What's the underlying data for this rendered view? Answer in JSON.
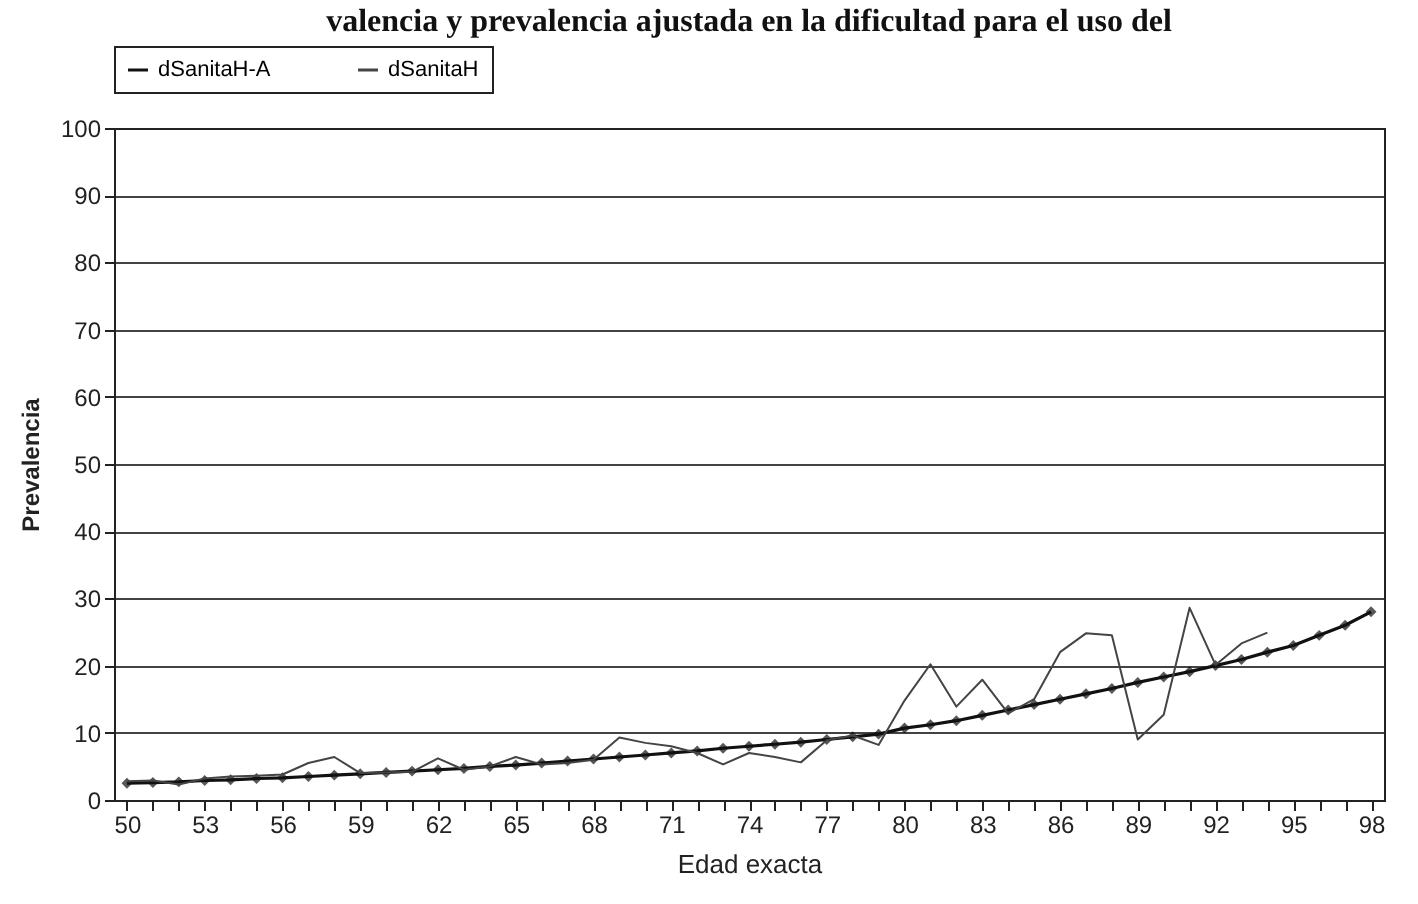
{
  "chart_data": {
    "type": "line",
    "title": "valencia y prevalencia ajustada en la dificultad para el uso del",
    "xlabel": "Edad exacta",
    "ylabel": "Prevalencia",
    "categories": [
      "50",
      null,
      null,
      "53",
      null,
      null,
      "56",
      null,
      null,
      "59",
      null,
      null,
      "62",
      null,
      null,
      "65",
      null,
      null,
      "68",
      null,
      null,
      "71",
      null,
      null,
      "74",
      null,
      null,
      "77",
      null,
      null,
      "80",
      null,
      null,
      "83",
      null,
      null,
      "86",
      null,
      null,
      "89",
      null,
      null,
      "92",
      null,
      null,
      "95",
      null,
      null,
      "98"
    ],
    "series": [
      {
        "name": "dSanitaH-A",
        "color": "#111111",
        "marker": "diamond",
        "values": [
          2.5,
          2.6,
          2.7,
          2.9,
          3.0,
          3.2,
          3.3,
          3.5,
          3.7,
          3.9,
          4.1,
          4.3,
          4.5,
          4.7,
          5.0,
          5.2,
          5.5,
          5.8,
          6.1,
          6.4,
          6.7,
          7.0,
          7.3,
          7.7,
          8.0,
          8.3,
          8.6,
          9.0,
          9.4,
          9.8,
          10.7,
          11.2,
          11.8,
          12.6,
          13.4,
          14.2,
          15.0,
          15.8,
          16.6,
          17.5,
          18.3,
          19.1,
          20.0,
          20.9,
          22.0,
          23.0,
          24.5,
          26.0,
          28.0
        ]
      },
      {
        "name": "dSanitaH",
        "color": "#444444",
        "marker": "none",
        "values": [
          2.8,
          2.9,
          2.3,
          3.2,
          3.5,
          3.6,
          3.8,
          5.5,
          6.4,
          4.0,
          4.1,
          4.2,
          6.2,
          4.5,
          5.0,
          6.4,
          5.3,
          5.5,
          6.0,
          9.3,
          8.5,
          8.0,
          7.0,
          5.3,
          7.0,
          6.4,
          5.6,
          8.9,
          9.6,
          8.2,
          14.8,
          20.2,
          13.9,
          17.9,
          12.9,
          15.0,
          22.0,
          24.8,
          24.5,
          9.0,
          12.7,
          28.6,
          20.1,
          23.3,
          24.9,
          null,
          null,
          null,
          null
        ]
      }
    ],
    "ylim": [
      0,
      100
    ],
    "yticks": [
      0,
      10,
      20,
      30,
      40,
      50,
      60,
      70,
      80,
      90,
      100
    ],
    "grid": "y",
    "legend": "top",
    "line_style": "solid"
  }
}
